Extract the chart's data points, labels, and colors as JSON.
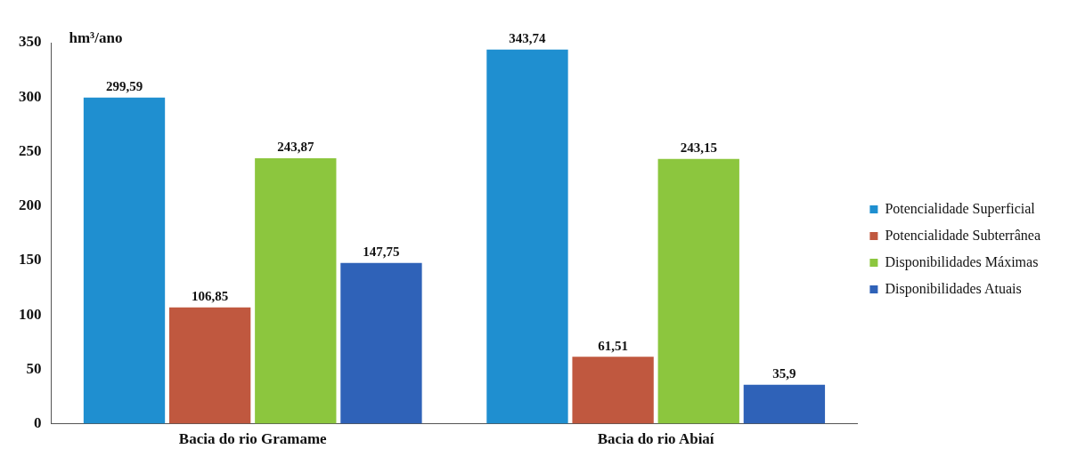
{
  "chart_data": {
    "type": "bar",
    "ylabel": "hm³/ano",
    "categories": [
      "Bacia do rio Gramame",
      "Bacia do rio Abiaí"
    ],
    "series": [
      {
        "name": "Potencialidade Superficial",
        "color": "#1f8fd0",
        "values": [
          299.59,
          343.74
        ],
        "value_labels": [
          "299,59",
          "343,74"
        ]
      },
      {
        "name": "Potencialidade Subterrânea",
        "color": "#c0583f",
        "values": [
          106.85,
          61.51
        ],
        "value_labels": [
          "106,85",
          "61,51"
        ]
      },
      {
        "name": "Disponibilidades Máximas",
        "color": "#8cc63e",
        "values": [
          243.87,
          243.15
        ],
        "value_labels": [
          "243,87",
          "243,15"
        ]
      },
      {
        "name": "Disponibilidades Atuais",
        "color": "#2f62b8",
        "values": [
          147.75,
          35.9
        ],
        "value_labels": [
          "147,75",
          "35,9"
        ]
      }
    ],
    "ylim": [
      0,
      350
    ],
    "yticks": [
      0,
      50,
      100,
      150,
      200,
      250,
      300,
      350
    ],
    "grid": false,
    "legend": "right"
  }
}
